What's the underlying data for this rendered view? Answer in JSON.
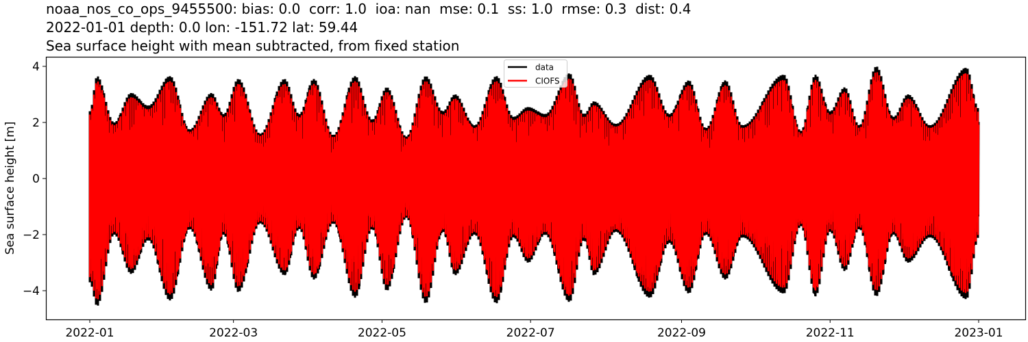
{
  "title": {
    "line1": "noaa_nos_co_ops_9455500: bias: 0.0  corr: 1.0  ioa: nan  mse: 0.1  ss: 1.0  rmse: 0.3  dist: 0.4",
    "line2": "2022-01-01 depth: 0.0 lon: -151.72 lat: 59.44",
    "line3": "Sea surface height with mean subtracted, from fixed station"
  },
  "legend": {
    "items": [
      {
        "label": "data",
        "color": "#000000"
      },
      {
        "label": "CIOFS",
        "color": "#ff0000"
      }
    ]
  },
  "axes": {
    "ylabel": "Sea surface height [m]",
    "yticks": [
      {
        "value": 4,
        "label": "4"
      },
      {
        "value": 2,
        "label": "2"
      },
      {
        "value": 0,
        "label": "0"
      },
      {
        "value": -2,
        "label": "−2"
      },
      {
        "value": -4,
        "label": "−4"
      }
    ],
    "xticks": [
      {
        "day": 0,
        "label": "2022-01"
      },
      {
        "day": 59,
        "label": "2022-03"
      },
      {
        "day": 120,
        "label": "2022-05"
      },
      {
        "day": 181,
        "label": "2022-07"
      },
      {
        "day": 243,
        "label": "2022-09"
      },
      {
        "day": 304,
        "label": "2022-11"
      },
      {
        "day": 365,
        "label": "2023-01"
      }
    ]
  },
  "chart_data": {
    "type": "line",
    "title": "noaa_nos_co_ops_9455500: bias: 0.0  corr: 1.0  ioa: nan  mse: 0.1  ss: 1.0  rmse: 0.3  dist: 0.4 / 2022-01-01 depth: 0.0 lon: -151.72 lat: 59.44 / Sea surface height with mean subtracted, from fixed station",
    "xlabel": "",
    "ylabel": "Sea surface height [m]",
    "xlim": [
      "2021-12-09",
      "2023-01-19"
    ],
    "ylim": [
      -5.0,
      4.35
    ],
    "x_range_data": [
      "2022-01-01",
      "2022-12-31"
    ],
    "grid": false,
    "legend_position": "upper center",
    "description": "Dense semidiurnal tidal oscillation with spring-neap modulation; model (CIOFS) closely tracks observations (data), with observed extremes slightly larger at spring tides.",
    "series": [
      {
        "name": "data",
        "color": "#000000",
        "envelope_max": [
          [
            0,
            2.4
          ],
          [
            3,
            3.65
          ],
          [
            10,
            2.0
          ],
          [
            17,
            3.05
          ],
          [
            24,
            2.6
          ],
          [
            33,
            3.65
          ],
          [
            41,
            1.75
          ],
          [
            50,
            3.05
          ],
          [
            55,
            2.3
          ],
          [
            61,
            3.55
          ],
          [
            70,
            1.6
          ],
          [
            80,
            3.55
          ],
          [
            86,
            2.3
          ],
          [
            92,
            3.55
          ],
          [
            100,
            1.55
          ],
          [
            109,
            3.65
          ],
          [
            116,
            2.1
          ],
          [
            122,
            3.25
          ],
          [
            130,
            1.5
          ],
          [
            138,
            3.65
          ],
          [
            145,
            2.4
          ],
          [
            150,
            3.0
          ],
          [
            158,
            1.9
          ],
          [
            167,
            3.65
          ],
          [
            174,
            2.2
          ],
          [
            180,
            2.55
          ],
          [
            187,
            2.3
          ],
          [
            197,
            3.75
          ],
          [
            203,
            2.3
          ],
          [
            207,
            2.75
          ],
          [
            216,
            1.95
          ],
          [
            230,
            3.7
          ],
          [
            238,
            2.3
          ],
          [
            246,
            3.5
          ],
          [
            253,
            1.8
          ],
          [
            261,
            3.5
          ],
          [
            268,
            1.9
          ],
          [
            285,
            3.7
          ],
          [
            292,
            1.7
          ],
          [
            298,
            3.7
          ],
          [
            304,
            2.4
          ],
          [
            310,
            3.25
          ],
          [
            316,
            1.9
          ],
          [
            323,
            4.0
          ],
          [
            330,
            2.2
          ],
          [
            336,
            3.0
          ],
          [
            345,
            1.9
          ],
          [
            360,
            3.95
          ],
          [
            365,
            2.5
          ]
        ],
        "envelope_min": [
          [
            0,
            -3.7
          ],
          [
            3,
            -4.55
          ],
          [
            10,
            -2.0
          ],
          [
            17,
            -3.4
          ],
          [
            24,
            -2.2
          ],
          [
            33,
            -4.35
          ],
          [
            41,
            -1.8
          ],
          [
            50,
            -4.0
          ],
          [
            55,
            -2.0
          ],
          [
            61,
            -4.05
          ],
          [
            70,
            -1.6
          ],
          [
            80,
            -3.45
          ],
          [
            86,
            -1.8
          ],
          [
            92,
            -3.6
          ],
          [
            100,
            -1.6
          ],
          [
            109,
            -4.25
          ],
          [
            116,
            -1.8
          ],
          [
            122,
            -4.0
          ],
          [
            130,
            -1.4
          ],
          [
            138,
            -4.45
          ],
          [
            145,
            -1.9
          ],
          [
            150,
            -3.45
          ],
          [
            158,
            -2.0
          ],
          [
            167,
            -4.45
          ],
          [
            174,
            -2.1
          ],
          [
            180,
            -3.0
          ],
          [
            187,
            -2.0
          ],
          [
            197,
            -4.4
          ],
          [
            203,
            -2.2
          ],
          [
            207,
            -3.45
          ],
          [
            216,
            -1.9
          ],
          [
            230,
            -4.25
          ],
          [
            238,
            -2.3
          ],
          [
            246,
            -4.1
          ],
          [
            253,
            -2.0
          ],
          [
            261,
            -3.6
          ],
          [
            268,
            -2.1
          ],
          [
            285,
            -4.1
          ],
          [
            292,
            -1.7
          ],
          [
            298,
            -4.2
          ],
          [
            304,
            -1.9
          ],
          [
            310,
            -3.3
          ],
          [
            316,
            -1.8
          ],
          [
            323,
            -4.2
          ],
          [
            330,
            -2.0
          ],
          [
            336,
            -3.0
          ],
          [
            345,
            -2.1
          ],
          [
            360,
            -4.3
          ],
          [
            365,
            -2.1
          ]
        ]
      },
      {
        "name": "CIOFS",
        "color": "#ff0000",
        "envelope_scale_vs_data": 0.95
      }
    ]
  }
}
